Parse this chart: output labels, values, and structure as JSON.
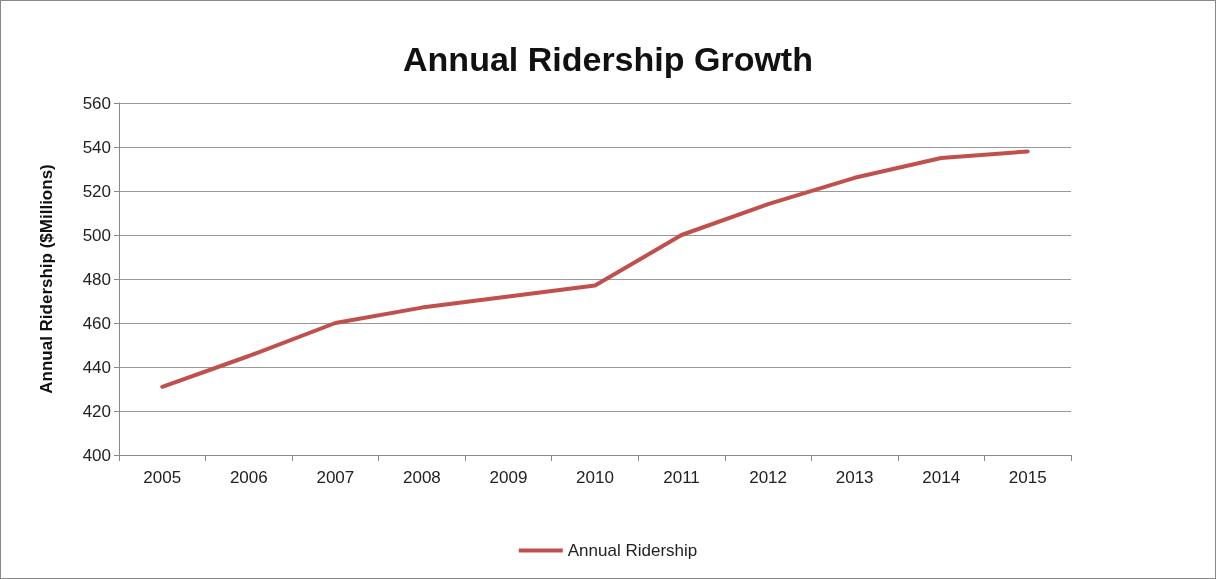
{
  "chart_data": {
    "type": "line",
    "title": "Annual Ridership Growth",
    "ylabel": "Annual Ridership ($Millions)",
    "categories": [
      "2005",
      "2006",
      "2007",
      "2008",
      "2009",
      "2010",
      "2011",
      "2012",
      "2013",
      "2014",
      "2015"
    ],
    "series": [
      {
        "name": "Annual Ridership",
        "color": "#c0504d",
        "values": [
          431,
          445,
          460,
          467,
          472,
          477,
          500,
          514,
          526,
          535,
          538
        ]
      }
    ],
    "ylim": [
      400,
      560
    ],
    "yticks": [
      400,
      420,
      440,
      460,
      480,
      500,
      520,
      540,
      560
    ],
    "grid": "y",
    "legend": "bottom",
    "marker": "none",
    "line_style": "solid"
  }
}
